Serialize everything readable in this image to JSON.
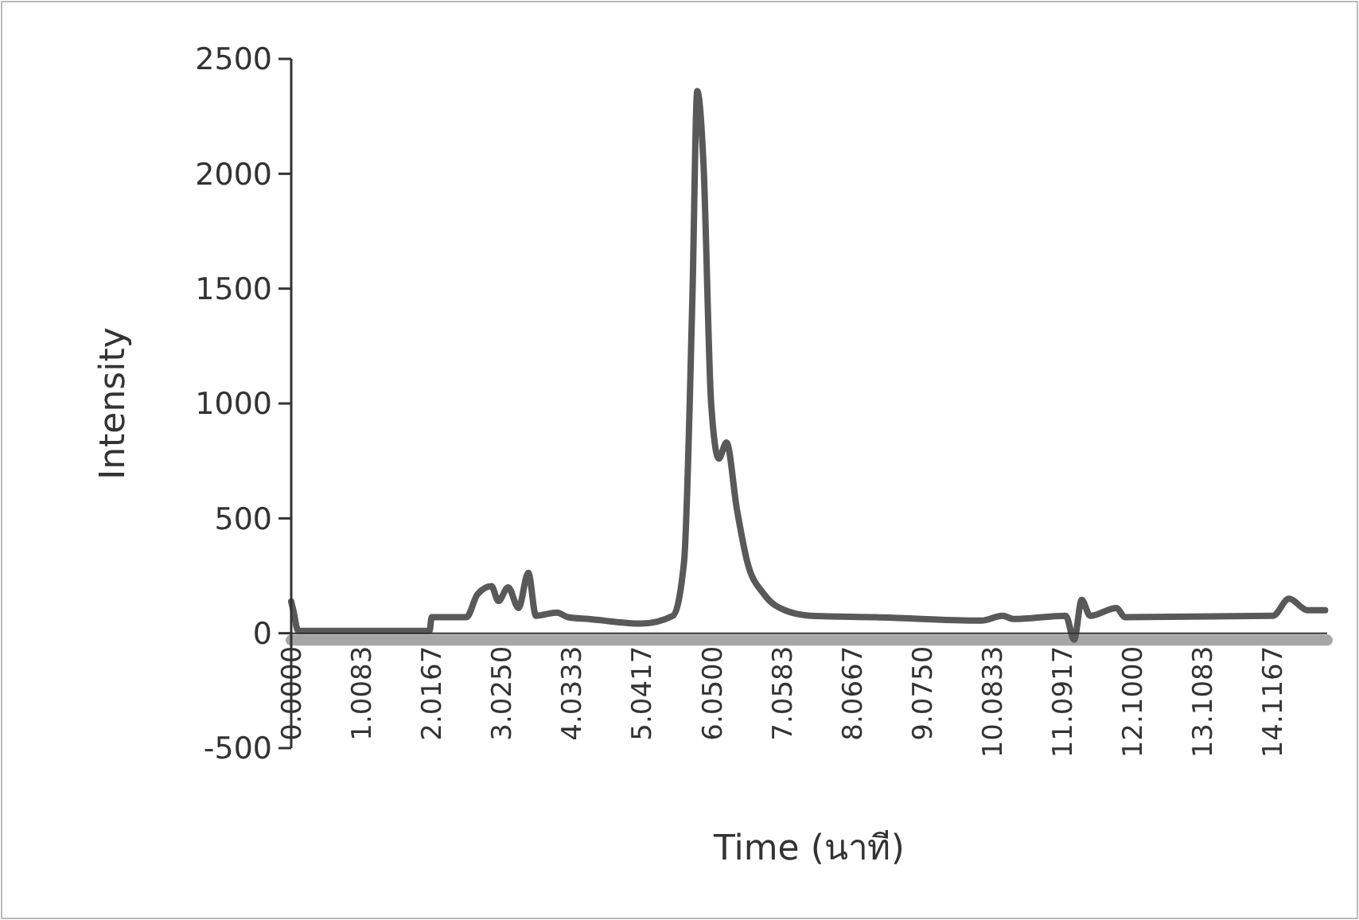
{
  "chart_data": {
    "type": "line",
    "xlabel": "Time (นาที)",
    "ylabel": "Intensity",
    "xlim": [
      0,
      14.9
    ],
    "ylim": [
      -500,
      2500
    ],
    "xticks": [
      {
        "value": 0,
        "label": "0.0000"
      },
      {
        "value": 1.0083,
        "label": "1.0083"
      },
      {
        "value": 2.0167,
        "label": "2.0167"
      },
      {
        "value": 3.025,
        "label": "3.0250"
      },
      {
        "value": 4.0333,
        "label": "4.0333"
      },
      {
        "value": 5.0417,
        "label": "5.0417"
      },
      {
        "value": 6.05,
        "label": "6.0500"
      },
      {
        "value": 7.0583,
        "label": "7.0583"
      },
      {
        "value": 8.0667,
        "label": "8.0667"
      },
      {
        "value": 9.075,
        "label": "9.0750"
      },
      {
        "value": 10.0833,
        "label": "10.0833"
      },
      {
        "value": 11.0917,
        "label": "11.0917"
      },
      {
        "value": 12.1,
        "label": "12.1000"
      },
      {
        "value": 13.1083,
        "label": "13.1083"
      },
      {
        "value": 14.1167,
        "label": "14.1167"
      }
    ],
    "yticks": [
      -500,
      0,
      500,
      1000,
      1500,
      2000,
      2500
    ],
    "grid": false,
    "marker": "none",
    "line_style": "solid",
    "series": [
      {
        "color": "#a6a6a6",
        "x": [
          0,
          3,
          6,
          9,
          12,
          14.9
        ],
        "values": [
          -30,
          -30,
          -30,
          -30,
          -30,
          -30
        ]
      },
      {
        "color": "#595959",
        "x": [
          0,
          0.03,
          0.1,
          1.0,
          1.99,
          2.02,
          2.52,
          2.68,
          2.88,
          2.98,
          3.12,
          3.27,
          3.41,
          3.52,
          3.82,
          3.98,
          4.28,
          5.04,
          5.49,
          5.65,
          5.77,
          5.84,
          5.93,
          6.04,
          6.15,
          6.26,
          6.41,
          6.56,
          6.8,
          7.1,
          7.48,
          8.4,
          9.93,
          10.23,
          10.39,
          11.14,
          11.26,
          11.37,
          11.49,
          11.87,
          11.99,
          14.12,
          14.35,
          14.62,
          14.87
        ],
        "values": [
          138,
          100,
          10,
          10,
          10,
          70,
          70,
          170,
          205,
          140,
          200,
          110,
          263,
          76,
          90,
          70,
          62,
          42,
          76,
          310,
          1460,
          2360,
          2040,
          1000,
          760,
          830,
          540,
          310,
          170,
          100,
          76,
          70,
          55,
          76,
          62,
          76,
          -28,
          145,
          76,
          110,
          70,
          76,
          150,
          100,
          100
        ]
      }
    ]
  }
}
